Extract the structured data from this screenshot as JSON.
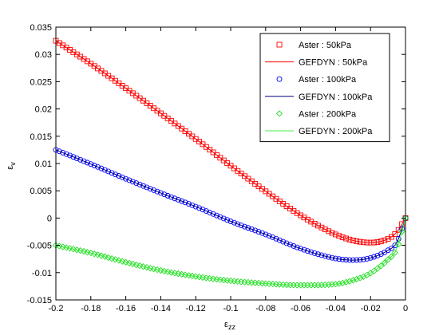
{
  "chart_data": {
    "type": "line",
    "title": "",
    "xlabel_base": "ε",
    "xlabel_sub": "zz",
    "ylabel_base": "ε",
    "ylabel_sub": "v",
    "xlim": [
      -0.2,
      0
    ],
    "ylim": [
      -0.015,
      0.035
    ],
    "xticks": [
      -0.2,
      -0.18,
      -0.16,
      -0.14,
      -0.12,
      -0.1,
      -0.08,
      -0.06,
      -0.04,
      -0.02,
      0
    ],
    "xtick_labels": [
      "-0.2",
      "-0.18",
      "-0.16",
      "-0.14",
      "-0.12",
      "-0.1",
      "-0.08",
      "-0.06",
      "-0.04",
      "-0.02",
      "0"
    ],
    "yticks": [
      -0.015,
      -0.01,
      -0.005,
      0,
      0.005,
      0.01,
      0.015,
      0.02,
      0.025,
      0.03,
      0.035
    ],
    "ytick_labels": [
      "-0.015",
      "-0.01",
      "-0.005",
      "0",
      "0.005",
      "0.01",
      "0.015",
      "0.02",
      "0.025",
      "0.03",
      "0.035"
    ],
    "grid": false,
    "legend_position": "top-right",
    "x": [
      -0.2,
      -0.18,
      -0.16,
      -0.14,
      -0.12,
      -0.1,
      -0.08,
      -0.06,
      -0.04,
      -0.03,
      -0.02,
      -0.01,
      -0.005,
      0
    ],
    "series": [
      {
        "name": "Aster : 50kPa",
        "kind": "marker",
        "marker": "square",
        "color": "#ff0000",
        "values": [
          0.0325,
          0.0283,
          0.0238,
          0.0192,
          0.0145,
          0.0096,
          0.0049,
          0.0005,
          -0.003,
          -0.0041,
          -0.0045,
          -0.0038,
          -0.0026,
          0
        ]
      },
      {
        "name": "GEFDYN : 50kPa",
        "kind": "line",
        "color": "#ff0000",
        "values": [
          0.0325,
          0.0283,
          0.0238,
          0.0192,
          0.0145,
          0.0096,
          0.0049,
          0.0005,
          -0.003,
          -0.0041,
          -0.0045,
          -0.0038,
          -0.0026,
          0
        ]
      },
      {
        "name": "Aster : 100kPa",
        "kind": "marker",
        "marker": "circle",
        "color": "#0000ff",
        "values": [
          0.0125,
          0.0099,
          0.0072,
          0.0046,
          0.0021,
          -0.0006,
          -0.003,
          -0.0056,
          -0.0074,
          -0.0077,
          -0.0073,
          -0.0059,
          -0.0045,
          0
        ]
      },
      {
        "name": "GEFDYN : 100kPa",
        "kind": "line",
        "color": "#000080",
        "values": [
          0.0125,
          0.0099,
          0.0072,
          0.0046,
          0.0021,
          -0.0006,
          -0.003,
          -0.0056,
          -0.0074,
          -0.0077,
          -0.0073,
          -0.0059,
          -0.0045,
          0
        ]
      },
      {
        "name": "Aster : 200kPa",
        "kind": "marker",
        "marker": "diamond",
        "color": "#22dd22",
        "values": [
          -0.005,
          -0.0064,
          -0.0081,
          -0.0096,
          -0.0107,
          -0.0115,
          -0.012,
          -0.0123,
          -0.0121,
          -0.0114,
          -0.0101,
          -0.0076,
          -0.0057,
          0
        ]
      },
      {
        "name": "GEFDYN : 200kPa",
        "kind": "line",
        "color": "#44ee44",
        "values": [
          -0.005,
          -0.0064,
          -0.0081,
          -0.0096,
          -0.0107,
          -0.0115,
          -0.012,
          -0.0123,
          -0.0121,
          -0.0114,
          -0.0101,
          -0.0076,
          -0.0057,
          0
        ]
      }
    ]
  }
}
